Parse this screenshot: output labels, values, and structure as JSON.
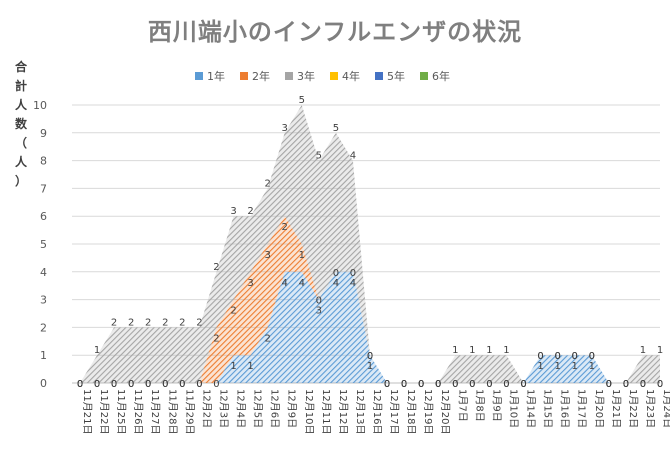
{
  "chart_data": {
    "type": "area",
    "title": "西川端小のインフルエンザの状況",
    "ylabel": "合計人数（人）",
    "ylim": [
      0,
      10
    ],
    "yticks": [
      0,
      1,
      2,
      3,
      4,
      5,
      6,
      7,
      8,
      9,
      10
    ],
    "legend_position": "top",
    "stacked": true,
    "categories": [
      "11月21日",
      "11月22日",
      "11月25日",
      "11月26日",
      "11月27日",
      "11月28日",
      "11月29日",
      "12月2日",
      "12月3日",
      "12月4日",
      "12月5日",
      "12月6日",
      "12月9日",
      "12月10日",
      "12月11日",
      "12月12日",
      "12月13日",
      "12月16日",
      "12月17日",
      "12月18日",
      "12月19日",
      "12月20日",
      "1月7日",
      "1月8日",
      "1月9日",
      "1月10日",
      "1月14日",
      "1月15日",
      "1月16日",
      "1月17日",
      "1月20日",
      "1月21日",
      "1月22日",
      "1月23日",
      "1月24日"
    ],
    "series": [
      {
        "name": "1年",
        "color": "#5b9bd5",
        "values": [
          0,
          0,
          0,
          0,
          0,
          0,
          0,
          0,
          0,
          1,
          1,
          2,
          4,
          4,
          3,
          4,
          4,
          1,
          0,
          0,
          0,
          0,
          0,
          0,
          0,
          0,
          0,
          1,
          1,
          1,
          1,
          0,
          0,
          0,
          0
        ]
      },
      {
        "name": "2年",
        "color": "#ed7d31",
        "values": [
          0,
          0,
          0,
          0,
          0,
          0,
          0,
          0,
          2,
          2,
          3,
          3,
          2,
          1,
          0,
          0,
          0,
          0,
          0,
          0,
          0,
          0,
          0,
          0,
          0,
          0,
          0,
          0,
          0,
          0,
          0,
          0,
          0,
          0,
          0
        ]
      },
      {
        "name": "3年",
        "color": "#a5a5a5",
        "values": [
          0,
          1,
          2,
          2,
          2,
          2,
          2,
          2,
          2,
          3,
          2,
          2,
          3,
          5,
          5,
          5,
          4,
          0,
          0,
          0,
          0,
          0,
          1,
          1,
          1,
          1,
          0,
          0,
          0,
          0,
          0,
          0,
          0,
          1,
          1
        ]
      },
      {
        "name": "4年",
        "color": "#ffc000",
        "values": [
          0,
          0,
          0,
          0,
          0,
          0,
          0,
          0,
          0,
          0,
          0,
          0,
          0,
          0,
          0,
          0,
          0,
          0,
          0,
          0,
          0,
          0,
          0,
          0,
          0,
          0,
          0,
          0,
          0,
          0,
          0,
          0,
          0,
          0,
          0
        ]
      },
      {
        "name": "5年",
        "color": "#4472c4",
        "values": [
          0,
          0,
          0,
          0,
          0,
          0,
          0,
          0,
          0,
          0,
          0,
          0,
          0,
          0,
          0,
          0,
          0,
          0,
          0,
          0,
          0,
          0,
          0,
          0,
          0,
          0,
          0,
          0,
          0,
          0,
          0,
          0,
          0,
          0,
          0
        ]
      },
      {
        "name": "6年",
        "color": "#70ad47",
        "values": [
          0,
          0,
          0,
          0,
          0,
          0,
          0,
          0,
          0,
          0,
          0,
          0,
          0,
          0,
          0,
          0,
          0,
          0,
          0,
          0,
          0,
          0,
          0,
          0,
          0,
          0,
          0,
          0,
          0,
          0,
          0,
          0,
          0,
          0,
          0
        ]
      }
    ]
  }
}
